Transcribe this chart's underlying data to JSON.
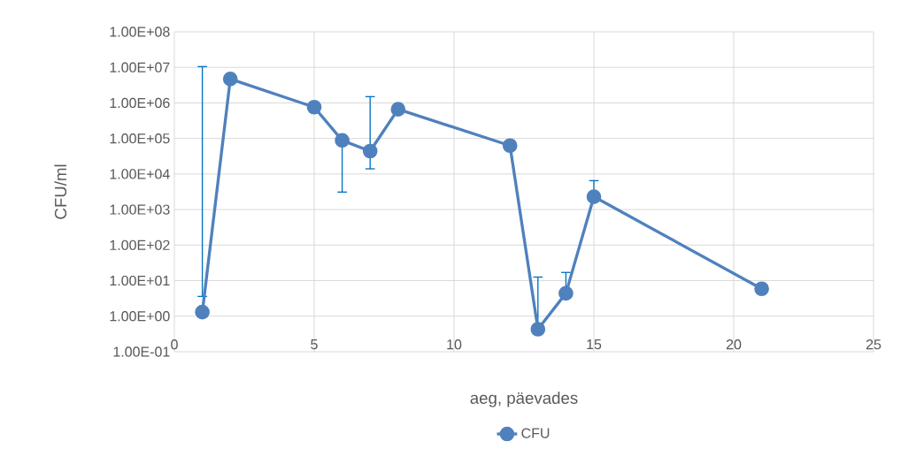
{
  "chart_data": {
    "type": "line",
    "xlabel": "aeg, päevades",
    "ylabel": "CFU/ml",
    "x": [
      1,
      2,
      5,
      6,
      7,
      8,
      12,
      13,
      14,
      15,
      21
    ],
    "series": [
      {
        "name": "CFU",
        "color": "#4f81bd",
        "values": [
          1.3,
          4700000,
          760000,
          88000,
          44000,
          660000,
          63000,
          0.43,
          4.4,
          2300,
          5.9
        ],
        "errors": [
          [
            3.6,
            10500000
          ],
          null,
          null,
          [
            3100,
            88000
          ],
          [
            14000,
            1500000
          ],
          null,
          null,
          [
            0.43,
            12.6
          ],
          [
            4.4,
            17
          ],
          [
            2300,
            6500
          ],
          null
        ]
      }
    ],
    "log": "y",
    "grid": true,
    "legend": "bottom",
    "marker": "circle",
    "line_style": "solid",
    "xlim": [
      0,
      25
    ],
    "xticks": [
      0,
      5,
      10,
      15,
      20,
      25
    ],
    "ylim": [
      0.1,
      100000000
    ],
    "yticks": [
      {
        "value": 0.1,
        "label": "1.00E-01"
      },
      {
        "value": 1,
        "label": "1.00E+00"
      },
      {
        "value": 10,
        "label": "1.00E+01"
      },
      {
        "value": 100,
        "label": "1.00E+02"
      },
      {
        "value": 1000,
        "label": "1.00E+03"
      },
      {
        "value": 10000,
        "label": "1.00E+04"
      },
      {
        "value": 100000,
        "label": "1.00E+05"
      },
      {
        "value": 1000000,
        "label": "1.00E+06"
      },
      {
        "value": 10000000,
        "label": "1.00E+07"
      },
      {
        "value": 100000000,
        "label": "1.00E+08"
      }
    ]
  }
}
